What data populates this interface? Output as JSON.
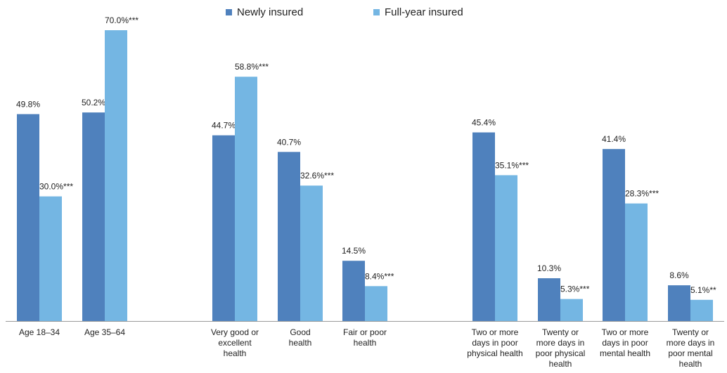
{
  "chart_data": {
    "type": "bar",
    "legend": [
      {
        "label": "Newly insured",
        "color": "#4f81bd"
      },
      {
        "label": "Full-year insured",
        "color": "#74b6e3"
      }
    ],
    "legend_placement": "top-center",
    "grid": false,
    "ylim": [
      0,
      75
    ],
    "groups": [
      {
        "categories": [
          {
            "lines": [
              "Age 18–34"
            ],
            "values": [
              49.8,
              30.0
            ],
            "labels": [
              "49.8%",
              "30.0%***"
            ]
          },
          {
            "lines": [
              "Age 35–64"
            ],
            "values": [
              50.2,
              70.0
            ],
            "labels": [
              "50.2%",
              "70.0%***"
            ]
          }
        ]
      },
      {
        "categories": [
          {
            "lines": [
              "Very good or",
              "excellent",
              "health"
            ],
            "values": [
              44.7,
              58.8
            ],
            "labels": [
              "44.7%",
              "58.8%***"
            ]
          },
          {
            "lines": [
              "Good",
              "health"
            ],
            "values": [
              40.7,
              32.6
            ],
            "labels": [
              "40.7%",
              "32.6%***"
            ]
          },
          {
            "lines": [
              "Fair or poor",
              "health"
            ],
            "values": [
              14.5,
              8.4
            ],
            "labels": [
              "14.5%",
              "8.4%***"
            ]
          }
        ]
      },
      {
        "categories": [
          {
            "lines": [
              "Two or more",
              "days in poor",
              "physical health"
            ],
            "values": [
              45.4,
              35.1
            ],
            "labels": [
              "45.4%",
              "35.1%***"
            ]
          },
          {
            "lines": [
              "Twenty or",
              "more days in",
              "poor physical",
              "health"
            ],
            "values": [
              10.3,
              5.3
            ],
            "labels": [
              "10.3%",
              "5.3%***"
            ]
          },
          {
            "lines": [
              "Two or more",
              "days in poor",
              "mental health"
            ],
            "values": [
              41.4,
              28.3
            ],
            "labels": [
              "41.4%",
              "28.3%***"
            ]
          },
          {
            "lines": [
              "Twenty or",
              "more days in",
              "poor mental",
              "health"
            ],
            "values": [
              8.6,
              5.1
            ],
            "labels": [
              "8.6%",
              "5.1%**"
            ]
          }
        ]
      }
    ]
  }
}
